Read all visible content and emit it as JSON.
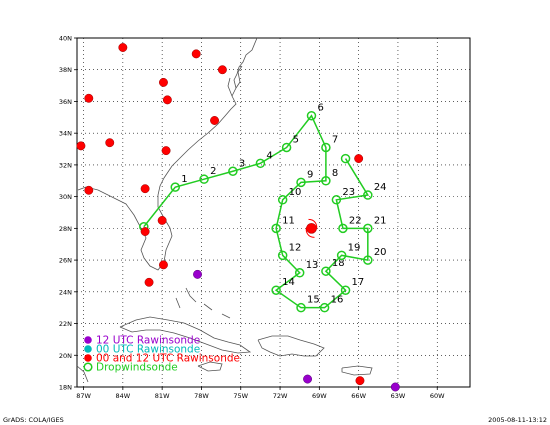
{
  "map": {
    "lon_labels": [
      "87W",
      "84W",
      "81W",
      "78W",
      "75W",
      "72W",
      "69W",
      "66W",
      "63W",
      "60W"
    ],
    "lat_labels": [
      "18N",
      "20N",
      "22N",
      "24N",
      "26N",
      "28N",
      "30N",
      "32N",
      "34N",
      "36N",
      "38N",
      "40N"
    ],
    "colors": {
      "dropwindsonde": "#22cc22",
      "rawin_12": "#9900cc",
      "rawin_00": "#00bbbb",
      "rawin_00_12": "#ff0000",
      "coastline": "#555555",
      "frame": "#000000"
    }
  },
  "track": [
    {
      "label": "1",
      "lon": -80.0,
      "lat": 30.6
    },
    {
      "label": "2",
      "lon": -77.8,
      "lat": 31.1
    },
    {
      "label": "3",
      "lon": -75.6,
      "lat": 31.6
    },
    {
      "label": "4",
      "lon": -73.5,
      "lat": 32.1
    },
    {
      "label": "5",
      "lon": -71.5,
      "lat": 33.1
    },
    {
      "label": "6",
      "lon": -69.6,
      "lat": 35.1
    },
    {
      "label": "7",
      "lon": -68.5,
      "lat": 33.1
    },
    {
      "label": "8",
      "lon": -68.5,
      "lat": 31.0
    },
    {
      "label": "9",
      "lon": -70.4,
      "lat": 30.9
    },
    {
      "label": "10",
      "lon": -71.8,
      "lat": 29.8
    },
    {
      "label": "11",
      "lon": -72.3,
      "lat": 28.0
    },
    {
      "label": "12",
      "lon": -71.8,
      "lat": 26.3
    },
    {
      "label": "13",
      "lon": -70.5,
      "lat": 25.2
    },
    {
      "label": "14",
      "lon": -72.3,
      "lat": 24.1
    },
    {
      "label": "15",
      "lon": -70.4,
      "lat": 23.0
    },
    {
      "label": "16",
      "lon": -68.6,
      "lat": 23.0
    },
    {
      "label": "17",
      "lon": -67.0,
      "lat": 24.1
    },
    {
      "label": "18",
      "lon": -68.5,
      "lat": 25.3
    },
    {
      "label": "19",
      "lon": -67.3,
      "lat": 26.3
    },
    {
      "label": "20",
      "lon": -65.3,
      "lat": 26.0
    },
    {
      "label": "21",
      "lon": -65.3,
      "lat": 28.0
    },
    {
      "label": "22",
      "lon": -67.2,
      "lat": 28.0
    },
    {
      "label": "23",
      "lon": -67.7,
      "lat": 29.8
    },
    {
      "label": "24",
      "lon": -65.3,
      "lat": 30.1
    },
    {
      "label": "",
      "lon": -67.0,
      "lat": 32.4
    },
    {
      "label": "",
      "lon": -82.4,
      "lat": 28.1
    }
  ],
  "track_order": [
    25,
    0,
    1,
    2,
    3,
    4,
    5,
    6,
    7,
    8,
    9,
    10,
    11,
    12,
    13,
    14,
    15,
    16,
    17,
    18,
    19,
    20,
    21,
    22,
    23,
    24
  ],
  "rawinsondes_00_12": [
    {
      "lon": -84.0,
      "lat": 39.4
    },
    {
      "lon": -78.4,
      "lat": 39.0
    },
    {
      "lon": -76.4,
      "lat": 38.0
    },
    {
      "lon": -80.9,
      "lat": 37.2
    },
    {
      "lon": -80.6,
      "lat": 36.1
    },
    {
      "lon": -86.6,
      "lat": 36.2
    },
    {
      "lon": -77.0,
      "lat": 34.8
    },
    {
      "lon": -85.0,
      "lat": 33.4
    },
    {
      "lon": -87.2,
      "lat": 33.2
    },
    {
      "lon": -80.7,
      "lat": 32.9
    },
    {
      "lon": -82.3,
      "lat": 30.5
    },
    {
      "lon": -86.6,
      "lat": 30.4
    },
    {
      "lon": -81.0,
      "lat": 28.5
    },
    {
      "lon": -82.3,
      "lat": 27.8
    },
    {
      "lon": -80.9,
      "lat": 25.7
    },
    {
      "lon": -82.0,
      "lat": 24.6
    },
    {
      "lon": -66.0,
      "lat": 32.4
    },
    {
      "lon": -65.9,
      "lat": 18.4
    }
  ],
  "rawinsondes_12": [
    {
      "lon": -78.3,
      "lat": 25.1
    },
    {
      "lon": -69.9,
      "lat": 18.5
    },
    {
      "lon": -63.2,
      "lat": 18.0
    }
  ],
  "storm_center": {
    "lon": -69.6,
    "lat": 28.0
  },
  "legend": [
    {
      "text": "12 UTC Rawinsonde",
      "color": "#9900cc",
      "kind": "dot"
    },
    {
      "text": "00 UTC Rawinsonde",
      "color": "#00bbbb",
      "kind": "dot"
    },
    {
      "text": "00 and 12 UTC Rawinsonde",
      "color": "#ff0000",
      "kind": "dot"
    },
    {
      "text": "Dropwindsonde",
      "color": "#22cc22",
      "kind": "ring"
    }
  ],
  "footer": {
    "left": "GrADS: COLA/IGES",
    "right": "2005-08-11-13:12"
  }
}
